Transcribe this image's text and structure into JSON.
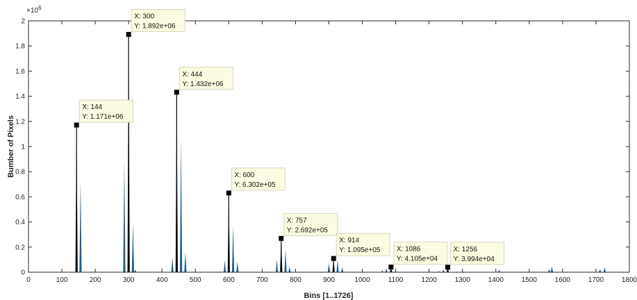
{
  "chart_data": {
    "type": "bar",
    "xlabel": "Bins [1..1726]",
    "ylabel": "Bumber of Pixels",
    "y_exponent_label": "×10",
    "y_exponent_power": "6",
    "xlim": [
      0,
      1800
    ],
    "ylim": [
      0,
      2000000
    ],
    "x_ticks": [
      0,
      100,
      200,
      300,
      400,
      500,
      600,
      700,
      800,
      900,
      1000,
      1100,
      1200,
      1300,
      1400,
      1500,
      1600,
      1700,
      1800
    ],
    "y_ticks": [
      0,
      200000,
      400000,
      600000,
      800000,
      1000000,
      1200000,
      1400000,
      1600000,
      1800000,
      2000000
    ],
    "y_tick_labels": [
      "0",
      "0.2",
      "0.4",
      "0.6",
      "0.8",
      "1",
      "1.2",
      "1.4",
      "1.6",
      "1.8",
      "2"
    ],
    "grid": false,
    "bar_color": "#1f5f8b",
    "peak_color": "#000000",
    "bins": [
      {
        "x": 144,
        "y": 1171000
      },
      {
        "x": 156,
        "y": 730000
      },
      {
        "x": 287,
        "y": 880000
      },
      {
        "x": 300,
        "y": 1892000
      },
      {
        "x": 313,
        "y": 390000
      },
      {
        "x": 320,
        "y": 20000
      },
      {
        "x": 431,
        "y": 120000
      },
      {
        "x": 444,
        "y": 1432000
      },
      {
        "x": 457,
        "y": 1065000
      },
      {
        "x": 470,
        "y": 160000
      },
      {
        "x": 588,
        "y": 95000
      },
      {
        "x": 600,
        "y": 630200
      },
      {
        "x": 613,
        "y": 370000
      },
      {
        "x": 626,
        "y": 85000
      },
      {
        "x": 744,
        "y": 100000
      },
      {
        "x": 757,
        "y": 269200
      },
      {
        "x": 770,
        "y": 180000
      },
      {
        "x": 782,
        "y": 45000
      },
      {
        "x": 900,
        "y": 70000
      },
      {
        "x": 914,
        "y": 109500
      },
      {
        "x": 926,
        "y": 100000
      },
      {
        "x": 940,
        "y": 40000
      },
      {
        "x": 1060,
        "y": 15000
      },
      {
        "x": 1072,
        "y": 30000
      },
      {
        "x": 1086,
        "y": 41050
      },
      {
        "x": 1100,
        "y": 10000
      },
      {
        "x": 1230,
        "y": 10000
      },
      {
        "x": 1243,
        "y": 20000
      },
      {
        "x": 1256,
        "y": 39940
      },
      {
        "x": 1410,
        "y": 20000
      },
      {
        "x": 1560,
        "y": 25000
      },
      {
        "x": 1568,
        "y": 45000
      },
      {
        "x": 1712,
        "y": 25000
      },
      {
        "x": 1726,
        "y": 40000
      }
    ],
    "datatips": [
      {
        "x": 144,
        "y": 1171000,
        "x_text": "X: 144",
        "y_text": "Y: 1.171e+06"
      },
      {
        "x": 300,
        "y": 1892000,
        "x_text": "X: 300",
        "y_text": "Y: 1.892e+06"
      },
      {
        "x": 444,
        "y": 1432000,
        "x_text": "X: 444",
        "y_text": "Y: 1.432e+06"
      },
      {
        "x": 600,
        "y": 630200,
        "x_text": "X: 600",
        "y_text": "Y: 6.302e+05"
      },
      {
        "x": 757,
        "y": 269200,
        "x_text": "X: 757",
        "y_text": "Y: 2.692e+05"
      },
      {
        "x": 914,
        "y": 109500,
        "x_text": "X: 914",
        "y_text": "Y: 1.095e+05"
      },
      {
        "x": 1086,
        "y": 41050,
        "x_text": "X: 1086",
        "y_text": "Y: 4.105e+04"
      },
      {
        "x": 1256,
        "y": 39940,
        "x_text": "X: 1256",
        "y_text": "Y: 3.994e+04"
      }
    ]
  }
}
